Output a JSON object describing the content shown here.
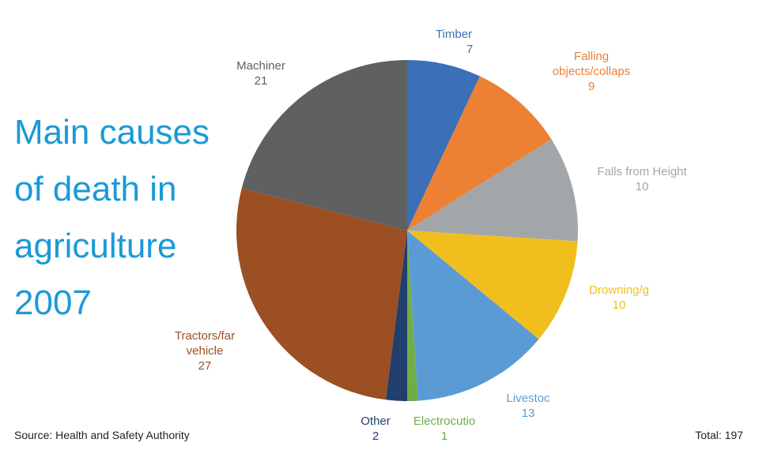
{
  "title_lines": [
    "Main causes",
    "of death in",
    "agriculture",
    "2007"
  ],
  "source": "Source: Health and Safety Authority",
  "total": "Total: 197",
  "chart_data": {
    "type": "pie",
    "title": "Main causes of death in agriculture 2007",
    "slices": [
      {
        "label": "Timber",
        "value": 7,
        "color": "#3b6fb8"
      },
      {
        "label": "Falling objects/collaps",
        "value": 9,
        "color": "#ec8133"
      },
      {
        "label": "Falls from Height",
        "value": 10,
        "color": "#a3a6a8"
      },
      {
        "label": "Drowning/g",
        "value": 10,
        "color": "#f1bf1d"
      },
      {
        "label": "Livestoc",
        "value": 13,
        "color": "#5b9bd5"
      },
      {
        "label": "Electrocutio",
        "value": 1,
        "color": "#71ad47"
      },
      {
        "label": "Other",
        "value": 2,
        "color": "#203f6d"
      },
      {
        "label": "Tractors/far vehicle",
        "value": 27,
        "color": "#9c4f23"
      },
      {
        "label": "Machiner",
        "value": 21,
        "color": "#5f6062"
      }
    ]
  }
}
